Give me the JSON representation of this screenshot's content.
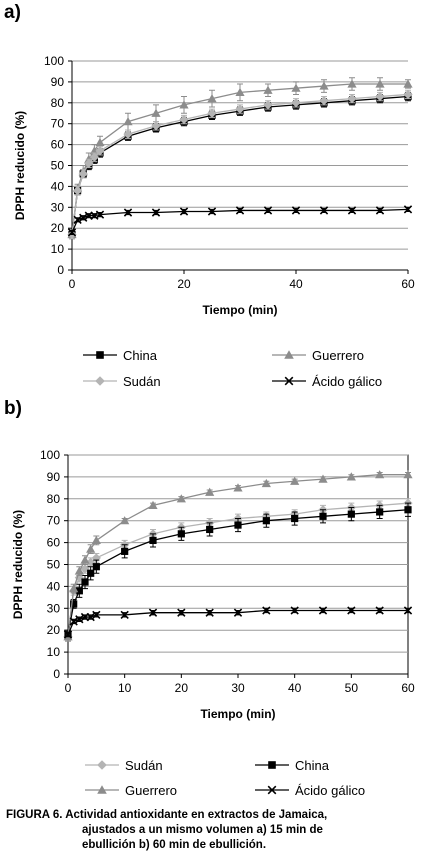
{
  "chart_data": [
    {
      "panel": "a)",
      "type": "line",
      "xlabel": "Tiempo (min)",
      "ylabel": "DPPH reducido (%)",
      "xlim": [
        0,
        60
      ],
      "ylim": [
        0,
        100
      ],
      "xticks": [
        0,
        20,
        40,
        60
      ],
      "yticks": [
        0,
        10,
        20,
        30,
        40,
        50,
        60,
        70,
        80,
        90,
        100
      ],
      "grid": "horizontal",
      "legend_position": "bottom",
      "series": [
        {
          "name": "China",
          "marker": "square",
          "color": "#000000",
          "x": [
            0,
            1,
            2,
            3,
            4,
            5,
            10,
            15,
            20,
            25,
            30,
            35,
            40,
            45,
            50,
            55,
            60
          ],
          "y": [
            17,
            38,
            46,
            50,
            53,
            56,
            64,
            68,
            71,
            74,
            76,
            78,
            79,
            80,
            81,
            82,
            83
          ],
          "err": [
            2,
            2,
            2,
            2,
            2,
            2,
            2,
            2,
            2,
            2,
            2,
            2,
            2,
            2,
            2,
            2,
            2
          ]
        },
        {
          "name": "Guerrero",
          "marker": "triangle",
          "color": "#8c8c8c",
          "x": [
            0,
            1,
            2,
            3,
            4,
            5,
            10,
            15,
            20,
            25,
            30,
            35,
            40,
            45,
            50,
            55,
            60
          ],
          "y": [
            17,
            39,
            47,
            53,
            57,
            61,
            71,
            75,
            79,
            82,
            85,
            86,
            87,
            88,
            89,
            89,
            89
          ],
          "err": [
            2,
            2,
            3,
            3,
            3,
            3,
            4,
            4,
            4,
            4,
            4,
            3,
            3,
            3,
            3,
            3,
            2
          ]
        },
        {
          "name": "Sudán",
          "marker": "diamond",
          "color": "#b4b4b4",
          "x": [
            0,
            1,
            2,
            3,
            4,
            5,
            10,
            15,
            20,
            25,
            30,
            35,
            40,
            45,
            50,
            55,
            60
          ],
          "y": [
            17,
            38,
            46,
            51,
            54,
            57,
            65,
            69,
            72,
            75,
            77,
            79,
            80,
            81,
            82,
            83,
            84
          ],
          "err": [
            2,
            2,
            2,
            2,
            2,
            2,
            2,
            2,
            2,
            2,
            2,
            2,
            2,
            2,
            2,
            2,
            2
          ]
        },
        {
          "name": "Ácido gálico",
          "marker": "x",
          "color": "#000000",
          "x": [
            0,
            1,
            2,
            3,
            4,
            5,
            10,
            15,
            20,
            25,
            30,
            35,
            40,
            45,
            50,
            55,
            60
          ],
          "y": [
            18,
            24,
            25,
            26,
            26,
            26.5,
            27.5,
            27.5,
            28,
            28,
            28.5,
            28.5,
            28.5,
            28.5,
            28.5,
            28.5,
            29
          ],
          "err": [
            1,
            1,
            1,
            1,
            1,
            1,
            1,
            1,
            1,
            1,
            1,
            1,
            1,
            1,
            1,
            1,
            1
          ]
        }
      ]
    },
    {
      "panel": "b)",
      "type": "line",
      "xlabel": "Tiempo (min)",
      "ylabel": "DPPH reducido (%)",
      "xlim": [
        0,
        60
      ],
      "ylim": [
        0,
        100
      ],
      "xticks": [
        0,
        10,
        20,
        30,
        40,
        50,
        60
      ],
      "yticks": [
        0,
        10,
        20,
        30,
        40,
        50,
        60,
        70,
        80,
        90,
        100
      ],
      "grid": "horizontal",
      "legend_position": "bottom",
      "series": [
        {
          "name": "Sudán",
          "marker": "diamond",
          "color": "#b4b4b4",
          "x": [
            0,
            1,
            2,
            3,
            4,
            5,
            10,
            15,
            20,
            25,
            30,
            35,
            40,
            45,
            50,
            55,
            60
          ],
          "y": [
            17,
            38,
            44,
            48,
            51,
            53,
            59,
            64,
            67,
            69,
            71,
            72,
            73,
            75,
            76,
            77,
            78
          ],
          "err": [
            2,
            2,
            2,
            2,
            2,
            2,
            2,
            2,
            2,
            2,
            2,
            2,
            2,
            2,
            2,
            2,
            2
          ]
        },
        {
          "name": "China",
          "marker": "square",
          "color": "#000000",
          "x": [
            0,
            1,
            2,
            3,
            4,
            5,
            10,
            15,
            20,
            25,
            30,
            35,
            40,
            45,
            50,
            55,
            60
          ],
          "y": [
            18,
            32,
            38,
            42,
            46,
            49,
            56,
            61,
            64,
            66,
            68,
            70,
            71,
            72,
            73,
            74,
            75
          ],
          "err": [
            2,
            2,
            3,
            3,
            3,
            3,
            3,
            3,
            3,
            3,
            3,
            3,
            3,
            3,
            3,
            3,
            3
          ]
        },
        {
          "name": "Guerrero",
          "marker": "triangle",
          "color": "#8c8c8c",
          "x": [
            0,
            1,
            2,
            3,
            4,
            5,
            10,
            15,
            20,
            25,
            30,
            35,
            40,
            45,
            50,
            55,
            60
          ],
          "y": [
            17,
            39,
            47,
            52,
            57,
            61,
            70,
            77,
            80,
            83,
            85,
            87,
            88,
            89,
            90,
            91,
            91
          ],
          "err": [
            2,
            2,
            2,
            2,
            2,
            2,
            1,
            1,
            1,
            1,
            1,
            1,
            1,
            1,
            1,
            1,
            1
          ]
        },
        {
          "name": "Ácido gálico",
          "marker": "x",
          "color": "#000000",
          "x": [
            0,
            1,
            2,
            3,
            4,
            5,
            10,
            15,
            20,
            25,
            30,
            35,
            40,
            45,
            50,
            55,
            60
          ],
          "y": [
            18,
            24,
            25,
            26,
            26,
            27,
            27,
            28,
            28,
            28,
            28,
            29,
            29,
            29,
            29,
            29,
            29
          ],
          "err": [
            1,
            1,
            1,
            1,
            1,
            1,
            1,
            1,
            1,
            1,
            1,
            1,
            1,
            1,
            1,
            1,
            1
          ]
        }
      ]
    }
  ],
  "caption": {
    "line1": "FIGURA 6. Actividad antioxidante en extractos de Jamaica,",
    "line2": "ajustados a un mismo volumen a) 15 min de",
    "line3": "ebullición b) 60 min de ebullición."
  }
}
